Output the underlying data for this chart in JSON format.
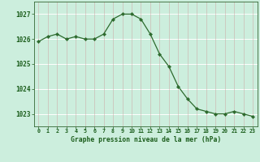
{
  "x": [
    0,
    1,
    2,
    3,
    4,
    5,
    6,
    7,
    8,
    9,
    10,
    11,
    12,
    13,
    14,
    15,
    16,
    17,
    18,
    19,
    20,
    21,
    22,
    23
  ],
  "y": [
    1025.9,
    1026.1,
    1026.2,
    1026.0,
    1026.1,
    1026.0,
    1026.0,
    1026.2,
    1026.8,
    1027.0,
    1027.0,
    1026.8,
    1026.2,
    1025.4,
    1024.9,
    1024.1,
    1023.6,
    1023.2,
    1023.1,
    1023.0,
    1023.0,
    1023.1,
    1023.0,
    1022.9
  ],
  "line_color": "#2d6a2d",
  "marker": "D",
  "marker_size": 2.2,
  "bg_color": "#cceedd",
  "grid_color": "#ffffff",
  "grid_vcolor": "#cc9999",
  "xlabel": "Graphe pression niveau de la mer (hPa)",
  "xlabel_color": "#1a5c1a",
  "tick_color": "#1a5c1a",
  "ylim": [
    1022.5,
    1027.5
  ],
  "yticks": [
    1023,
    1024,
    1025,
    1026,
    1027
  ],
  "xtick_labels": [
    "0",
    "1",
    "2",
    "3",
    "4",
    "5",
    "6",
    "7",
    "8",
    "9",
    "10",
    "11",
    "12",
    "13",
    "14",
    "15",
    "16",
    "17",
    "18",
    "19",
    "20",
    "21",
    "22",
    "23"
  ],
  "figsize": [
    3.2,
    2.0
  ],
  "dpi": 100
}
